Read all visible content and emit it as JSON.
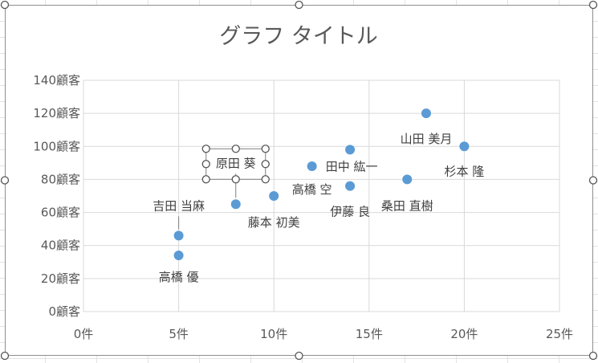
{
  "chart_data": {
    "type": "scatter",
    "title": "グラフ タイトル",
    "xlim": [
      0,
      25
    ],
    "ylim": [
      0,
      140
    ],
    "x_ticks": [
      0,
      5,
      10,
      15,
      20,
      25
    ],
    "y_ticks": [
      0,
      20,
      40,
      60,
      80,
      100,
      120,
      140
    ],
    "x_tick_labels": [
      "0件",
      "5件",
      "10件",
      "15件",
      "20件",
      "25件"
    ],
    "y_tick_labels": [
      "0顧客",
      "20顧客",
      "40顧客",
      "60顧客",
      "80顧客",
      "100顧客",
      "120顧客",
      "140顧客"
    ],
    "grid": true,
    "marker_color": "#5b9bd5",
    "points": [
      {
        "x": 5,
        "y": 34,
        "label": "高橋 優"
      },
      {
        "x": 5,
        "y": 46,
        "label": "吉田 当麻"
      },
      {
        "x": 8,
        "y": 65,
        "label": "原田 葵"
      },
      {
        "x": 10,
        "y": 70,
        "label": "藤本 初美"
      },
      {
        "x": 12,
        "y": 88,
        "label": "高橋 空"
      },
      {
        "x": 14,
        "y": 98,
        "label": "田中 紘一"
      },
      {
        "x": 14,
        "y": 76,
        "label": "伊藤 良"
      },
      {
        "x": 17,
        "y": 80,
        "label": "桑田 直樹"
      },
      {
        "x": 18,
        "y": 120,
        "label": "山田 美月"
      },
      {
        "x": 20,
        "y": 100,
        "label": "杉本 隆"
      }
    ]
  }
}
